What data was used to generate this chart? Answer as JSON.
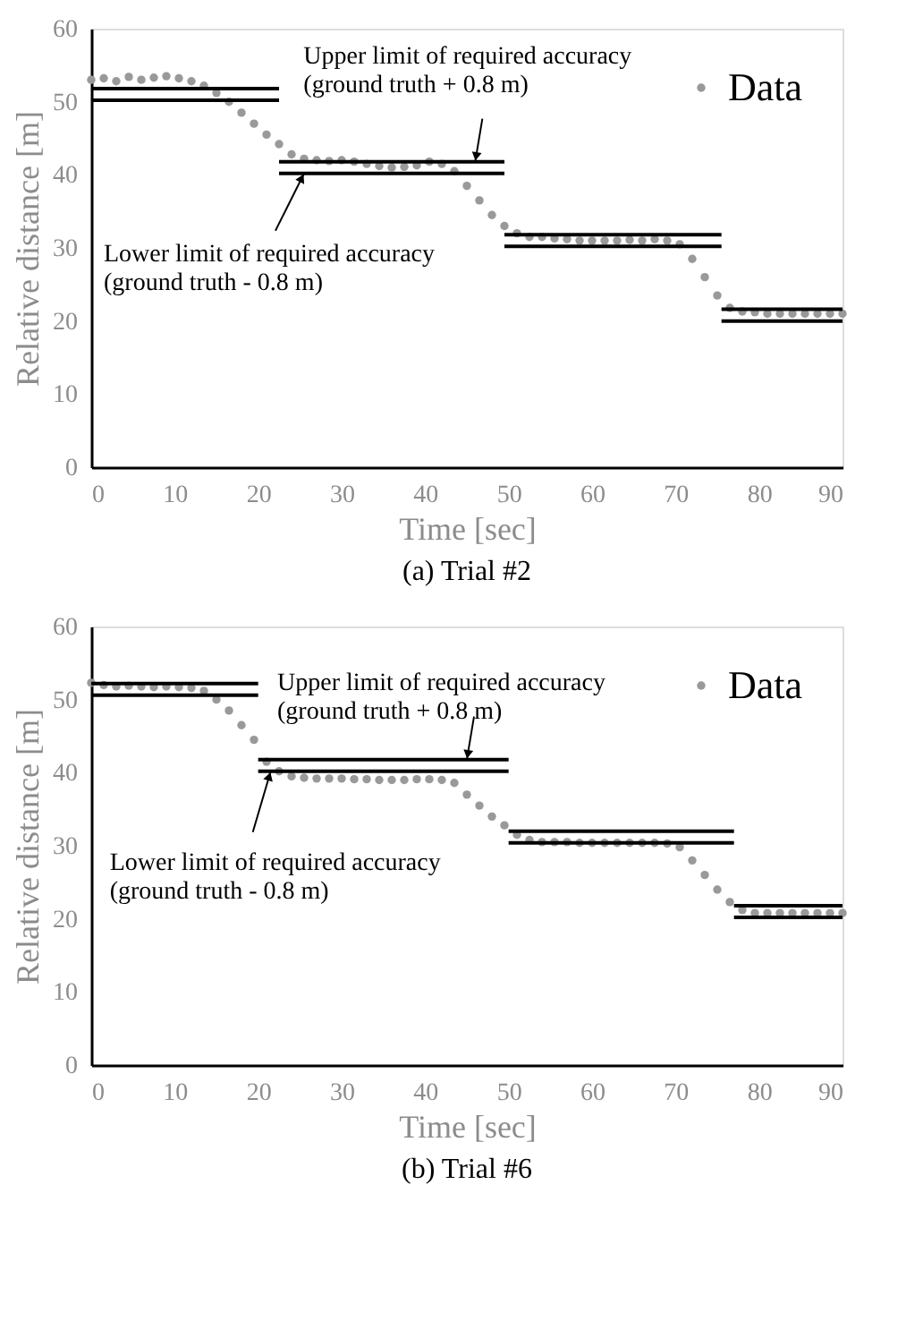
{
  "chart_data": [
    {
      "type": "scatter",
      "title": "(a) Trial #2",
      "xlabel": "Time [sec]",
      "ylabel": "Relative distance [m]",
      "xlim": [
        0,
        90
      ],
      "ylim": [
        0,
        60
      ],
      "xticks": [
        0,
        10,
        20,
        30,
        40,
        50,
        60,
        70,
        80,
        90
      ],
      "yticks": [
        0,
        10,
        20,
        30,
        40,
        50,
        60
      ],
      "grid": false,
      "legend": "top right",
      "series": [
        {
          "name": "Data",
          "marker": "circle",
          "color": "#999999",
          "x": [
            0,
            1.5,
            3,
            4.5,
            6,
            7.5,
            9,
            10.5,
            12,
            13.5,
            15,
            16.5,
            18,
            19.5,
            21,
            22.5,
            24,
            25.5,
            27,
            28.5,
            30,
            31.5,
            33,
            34.5,
            36,
            37.5,
            39,
            40.5,
            42,
            43.5,
            45,
            46.5,
            48,
            49.5,
            51,
            52.5,
            54,
            55.5,
            57,
            58.5,
            60,
            61.5,
            63,
            64.5,
            66,
            67.5,
            69,
            70.5,
            72,
            73.5,
            75,
            76.5,
            78,
            79.5,
            81,
            82.5,
            84,
            85.5,
            87,
            88.5,
            90
          ],
          "values": [
            53,
            53.2,
            52.8,
            53.4,
            53,
            53.3,
            53.5,
            53.2,
            52.8,
            52.2,
            51.2,
            50,
            48.5,
            47,
            45.5,
            44.2,
            42.8,
            42.2,
            42,
            41.9,
            42,
            41.8,
            41.5,
            41.2,
            41,
            41.1,
            41.3,
            41.8,
            41.5,
            40.5,
            38.5,
            36.5,
            34.5,
            33,
            32,
            31.5,
            31.5,
            31.3,
            31.2,
            31,
            31,
            31,
            31,
            31.1,
            31,
            31.2,
            31,
            30.5,
            28.5,
            26,
            23.5,
            21.8,
            21.3,
            21.2,
            21,
            21,
            21,
            21,
            21,
            21,
            21
          ]
        },
        {
          "type": "line",
          "color": "#000000",
          "x": [
            0,
            22.5
          ],
          "values": [
            51.8,
            51.8
          ]
        },
        {
          "type": "line",
          "color": "#000000",
          "x": [
            0,
            22.5
          ],
          "values": [
            50.2,
            50.2
          ]
        },
        {
          "type": "line",
          "color": "#000000",
          "x": [
            22.5,
            49.5
          ],
          "values": [
            41.8,
            41.8
          ]
        },
        {
          "type": "line",
          "color": "#000000",
          "x": [
            22.5,
            49.5
          ],
          "values": [
            40.2,
            40.2
          ]
        },
        {
          "type": "line",
          "color": "#000000",
          "x": [
            49.5,
            75.5
          ],
          "values": [
            31.8,
            31.8
          ]
        },
        {
          "type": "line",
          "color": "#000000",
          "x": [
            49.5,
            75.5
          ],
          "values": [
            30.2,
            30.2
          ]
        },
        {
          "type": "line",
          "color": "#000000",
          "x": [
            75.5,
            90
          ],
          "values": [
            21.6,
            21.6
          ]
        },
        {
          "type": "line",
          "color": "#000000",
          "x": [
            75.5,
            90
          ],
          "values": [
            20,
            20
          ]
        }
      ],
      "annotations": [
        {
          "text": "Upper limit of required accuracy\n(ground truth + 0.8 m)",
          "x": 46,
          "y": 41.8
        },
        {
          "text": "Lower limit of required accuracy\n(ground truth - 0.8 m)",
          "x": 25.5,
          "y": 40.2
        }
      ]
    },
    {
      "type": "scatter",
      "title": "(b) Trial #6",
      "xlabel": "Time [sec]",
      "ylabel": "Relative distance [m]",
      "xlim": [
        0,
        90
      ],
      "ylim": [
        0,
        60
      ],
      "xticks": [
        0,
        10,
        20,
        30,
        40,
        50,
        60,
        70,
        80,
        90
      ],
      "yticks": [
        0,
        10,
        20,
        30,
        40,
        50,
        60
      ],
      "grid": false,
      "legend": "top right",
      "series": [
        {
          "name": "Data",
          "marker": "circle",
          "color": "#999999",
          "x": [
            0,
            1.5,
            3,
            4.5,
            6,
            7.5,
            9,
            10.5,
            12,
            13.5,
            15,
            16.5,
            18,
            19.5,
            21,
            22.5,
            24,
            25.5,
            27,
            28.5,
            30,
            31.5,
            33,
            34.5,
            36,
            37.5,
            39,
            40.5,
            42,
            43.5,
            45,
            46.5,
            48,
            49.5,
            51,
            52.5,
            54,
            55.5,
            57,
            58.5,
            60,
            61.5,
            63,
            64.5,
            66,
            67.5,
            69,
            70.5,
            72,
            73.5,
            75,
            76.5,
            78,
            79.5,
            81,
            82.5,
            84,
            85.5,
            87,
            88.5,
            90
          ],
          "values": [
            52.3,
            52,
            51.8,
            51.9,
            51.8,
            51.7,
            51.8,
            51.7,
            51.6,
            51.2,
            50,
            48.5,
            46.5,
            44.5,
            41.5,
            40.2,
            39.5,
            39.3,
            39.2,
            39.2,
            39.2,
            39.1,
            39.1,
            39,
            39,
            39,
            39.1,
            39.1,
            39,
            38.6,
            37,
            35.5,
            34,
            32.8,
            31.5,
            30.8,
            30.5,
            30.5,
            30.5,
            30.4,
            30.4,
            30.4,
            30.4,
            30.4,
            30.4,
            30.4,
            30.3,
            29.8,
            28,
            26,
            24,
            22.3,
            21.2,
            20.8,
            20.8,
            20.8,
            20.8,
            20.8,
            20.8,
            20.8,
            20.8
          ]
        },
        {
          "type": "line",
          "color": "#000000",
          "x": [
            0,
            20
          ],
          "values": [
            52.2,
            52.2
          ]
        },
        {
          "type": "line",
          "color": "#000000",
          "x": [
            0,
            20
          ],
          "values": [
            50.6,
            50.6
          ]
        },
        {
          "type": "line",
          "color": "#000000",
          "x": [
            20,
            50
          ],
          "values": [
            41.8,
            41.8
          ]
        },
        {
          "type": "line",
          "color": "#000000",
          "x": [
            20,
            50
          ],
          "values": [
            40.2,
            40.2
          ]
        },
        {
          "type": "line",
          "color": "#000000",
          "x": [
            50,
            77
          ],
          "values": [
            32,
            32
          ]
        },
        {
          "type": "line",
          "color": "#000000",
          "x": [
            50,
            77
          ],
          "values": [
            30.4,
            30.4
          ]
        },
        {
          "type": "line",
          "color": "#000000",
          "x": [
            77,
            90
          ],
          "values": [
            21.8,
            21.8
          ]
        },
        {
          "type": "line",
          "color": "#000000",
          "x": [
            77,
            90
          ],
          "values": [
            20.2,
            20.2
          ]
        }
      ],
      "annotations": [
        {
          "text": "Upper limit of required accuracy\n(ground truth + 0.8 m)",
          "x": 45,
          "y": 41.8
        },
        {
          "text": "Lower limit of required accuracy\n(ground truth - 0.8 m)",
          "x": 21.5,
          "y": 40.2
        }
      ]
    }
  ]
}
